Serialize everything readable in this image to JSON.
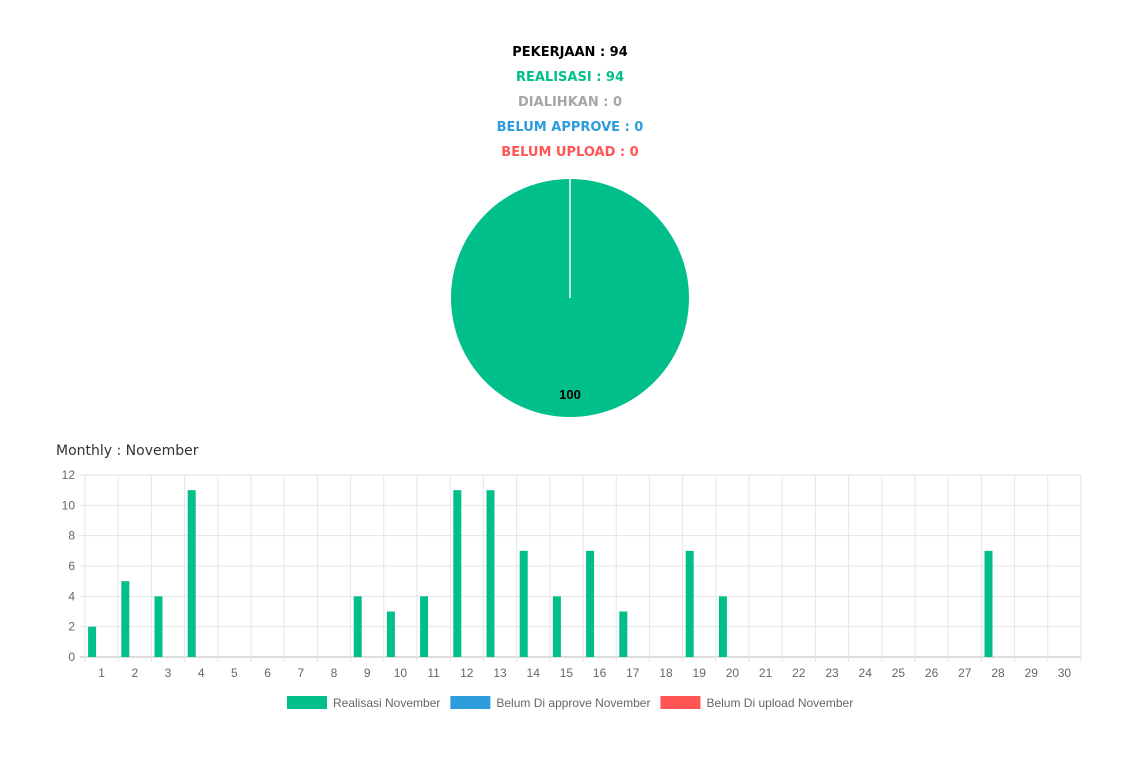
{
  "summary": {
    "pekerjaan": "PEKERJAAN : 94",
    "realisasi": "REALISASI : 94",
    "dialihkan": "DIALIHKAN : 0",
    "belum_approve": "BELUM APPROVE : 0",
    "belum_upload": "BELUM UPLOAD : 0"
  },
  "colors": {
    "pekerjaan": "#000000",
    "realisasi": "#00bf8a",
    "dialihkan": "#a6a6a6",
    "belum_approve": "#2d9cdb",
    "belum_upload": "#ff5555"
  },
  "monthly_title": "Monthly : November",
  "chart_data": [
    {
      "type": "pie",
      "values": [
        100
      ],
      "labels": [
        "100"
      ],
      "colors": [
        "#00bf8a"
      ]
    },
    {
      "type": "bar",
      "categories": [
        "1",
        "2",
        "3",
        "4",
        "5",
        "6",
        "7",
        "8",
        "9",
        "10",
        "11",
        "12",
        "13",
        "14",
        "15",
        "16",
        "17",
        "18",
        "19",
        "20",
        "21",
        "22",
        "23",
        "24",
        "25",
        "26",
        "27",
        "28",
        "29",
        "30"
      ],
      "series": [
        {
          "name": "Realisasi November",
          "color": "#00bf8a",
          "values": [
            2,
            5,
            4,
            11,
            0,
            0,
            0,
            0,
            4,
            3,
            4,
            11,
            11,
            7,
            4,
            7,
            3,
            0,
            7,
            4,
            0,
            0,
            0,
            0,
            0,
            0,
            0,
            7,
            0,
            0
          ]
        },
        {
          "name": "Belum Di approve November",
          "color": "#2d9cdb",
          "values": [
            0,
            0,
            0,
            0,
            0,
            0,
            0,
            0,
            0,
            0,
            0,
            0,
            0,
            0,
            0,
            0,
            0,
            0,
            0,
            0,
            0,
            0,
            0,
            0,
            0,
            0,
            0,
            0,
            0,
            0
          ]
        },
        {
          "name": "Belum Di upload November",
          "color": "#ff5555",
          "values": [
            0,
            0,
            0,
            0,
            0,
            0,
            0,
            0,
            0,
            0,
            0,
            0,
            0,
            0,
            0,
            0,
            0,
            0,
            0,
            0,
            0,
            0,
            0,
            0,
            0,
            0,
            0,
            0,
            0,
            0
          ]
        }
      ],
      "yticks": [
        "0",
        "2",
        "4",
        "6",
        "8",
        "10",
        "12"
      ],
      "ylim": [
        0,
        12
      ],
      "grid": true,
      "legend": "bottom"
    }
  ]
}
